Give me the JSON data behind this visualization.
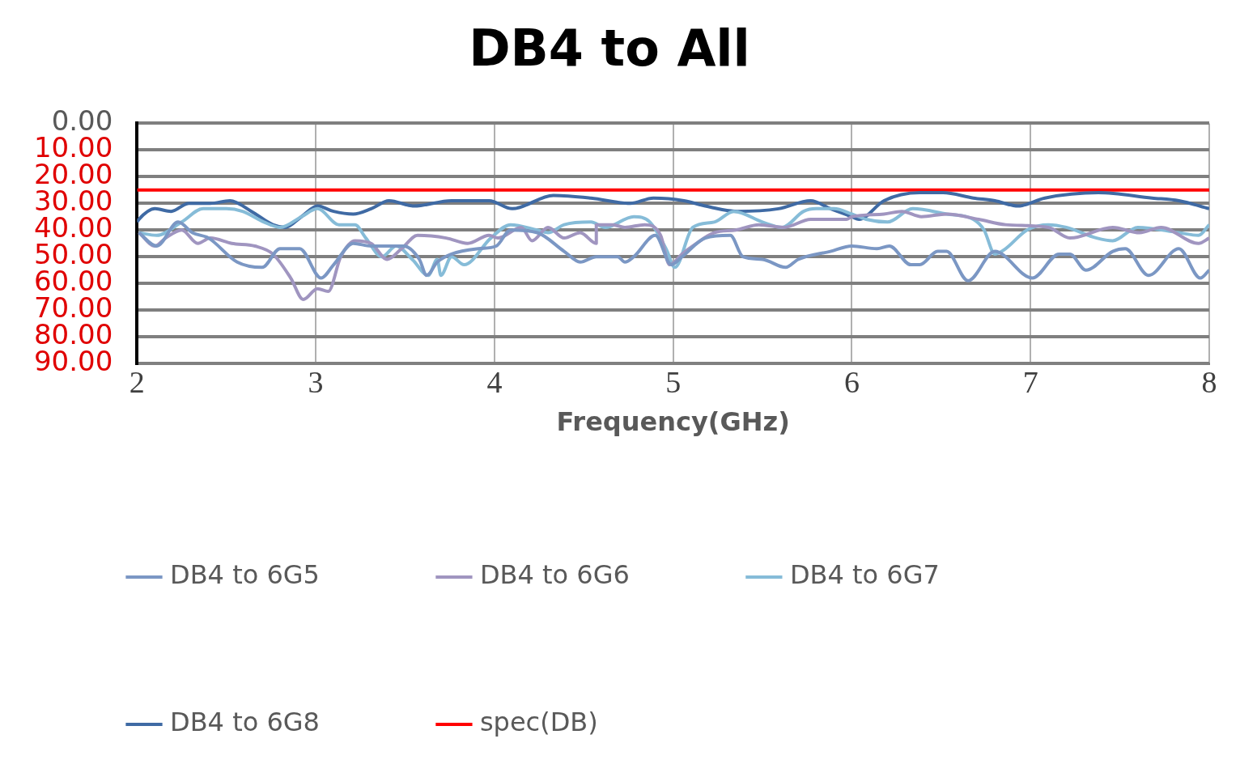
{
  "chart_data": {
    "type": "line",
    "title": "DB4 to All",
    "xlabel": "Frequency(GHz)",
    "xlim": [
      2,
      8
    ],
    "xticks": [
      2,
      3,
      4,
      5,
      6,
      7,
      8
    ],
    "ylim": [
      90,
      0
    ],
    "yticks": [
      {
        "value": 0,
        "label": "0.00"
      },
      {
        "value": 10,
        "label": "10.00"
      },
      {
        "value": 20,
        "label": "20.00"
      },
      {
        "value": 30,
        "label": "30.00"
      },
      {
        "value": 40,
        "label": "40.00"
      },
      {
        "value": 50,
        "label": "50.00"
      },
      {
        "value": 60,
        "label": "60.00"
      },
      {
        "value": 70,
        "label": "70.00"
      },
      {
        "value": 80,
        "label": "80.00"
      },
      {
        "value": 90,
        "label": "90.00"
      }
    ],
    "grid": true,
    "legend": "bottom",
    "marker": "none",
    "line_style": "solid",
    "series": [
      {
        "name": "DB4 to 6G5",
        "color": "#7b97c4",
        "x": [
          2.01,
          2.11,
          2.23,
          2.31,
          2.4,
          2.56,
          2.7,
          2.8,
          2.91,
          3.03,
          3.1,
          3.21,
          3.31,
          3.4,
          3.49,
          3.58,
          3.62,
          3.68,
          3.76,
          3.91,
          4.01,
          4.09,
          4.24,
          4.39,
          4.48,
          4.57,
          4.69,
          4.73,
          4.78,
          4.9,
          4.99,
          5.05,
          5.18,
          5.32,
          5.39,
          5.5,
          5.63,
          5.7,
          5.88,
          6,
          6.14,
          6.21,
          6.33,
          6.38,
          6.48,
          6.53,
          6.65,
          6.8,
          7.01,
          7.16,
          7.22,
          7.31,
          7.46,
          7.53,
          7.66,
          7.83,
          7.95,
          8
        ],
        "values": [
          41,
          46,
          37,
          41,
          43,
          52,
          54,
          47,
          47,
          58,
          53,
          45,
          46,
          46,
          46,
          51,
          57,
          52,
          49,
          47,
          46,
          40,
          41,
          48,
          52,
          50,
          50,
          52,
          50,
          42,
          53,
          50,
          43,
          42,
          50,
          51,
          54,
          51,
          48,
          46,
          47,
          46,
          53,
          53,
          48,
          48,
          59,
          48,
          58,
          49,
          49,
          55,
          48,
          47,
          57,
          47,
          58,
          55
        ]
      },
      {
        "name": "DB4 to 6G6",
        "color": "#a095c0",
        "x": [
          2.01,
          2.1,
          2.16,
          2.25,
          2.34,
          2.41,
          2.53,
          2.66,
          2.76,
          2.86,
          2.93,
          3.01,
          3.07,
          3.14,
          3.22,
          3.31,
          3.4,
          3.48,
          3.57,
          3.73,
          3.85,
          3.97,
          4.02,
          4.15,
          4.21,
          4.3,
          4.39,
          4.48,
          4.57,
          4.57,
          4.66,
          4.73,
          4.84,
          4.93,
          4.98,
          5.05,
          5.11,
          5.23,
          5.35,
          5.48,
          5.62,
          5.77,
          5.97,
          6,
          6.18,
          6.28,
          6.39,
          6.53,
          6.71,
          6.86,
          7.1,
          7.22,
          7.46,
          7.61,
          7.73,
          7.94,
          8
        ],
        "values": [
          41,
          46,
          43,
          40,
          45,
          43,
          45,
          46,
          49,
          58,
          66,
          62,
          63,
          50,
          44,
          45,
          51,
          47,
          42,
          43,
          45,
          42,
          43,
          39,
          44,
          39,
          43,
          41,
          45,
          38,
          38,
          39,
          38,
          42,
          53,
          49,
          46,
          41,
          40,
          38,
          39,
          36,
          36,
          35,
          34,
          33,
          35,
          34,
          36,
          38,
          39,
          43,
          39,
          41,
          39,
          45,
          43
        ]
      },
      {
        "name": "DB4 to 6G7",
        "color": "#86bcd8",
        "x": [
          2.01,
          2.11,
          2.25,
          2.37,
          2.5,
          2.59,
          2.71,
          2.8,
          2.92,
          3.01,
          3.13,
          3.22,
          3.28,
          3.37,
          3.45,
          3.54,
          3.63,
          3.68,
          3.7,
          3.76,
          3.83,
          3.98,
          4.09,
          4.24,
          4.3,
          4.39,
          4.54,
          4.62,
          4.78,
          4.87,
          4.96,
          5.01,
          5.11,
          5.23,
          5.34,
          5.5,
          5.61,
          5.73,
          5.8,
          5.9,
          6,
          6.08,
          6.2,
          6.34,
          6.53,
          6.68,
          6.74,
          6.8,
          6.86,
          6.98,
          7.1,
          7.2,
          7.37,
          7.46,
          7.6,
          7.83,
          7.94,
          8
        ],
        "values": [
          41,
          42,
          37,
          32,
          32,
          33,
          37,
          39,
          35,
          32,
          38,
          38,
          43,
          50,
          46,
          51,
          57,
          51,
          57,
          50,
          53,
          43,
          38,
          40,
          41,
          38,
          37,
          39,
          35,
          37,
          47,
          54,
          39,
          37,
          33,
          37,
          39,
          33,
          32,
          32,
          34,
          36,
          37,
          32,
          34,
          36,
          40,
          49,
          47,
          40,
          38,
          39,
          43,
          44,
          39,
          41,
          42,
          38
        ]
      },
      {
        "name": "DB4 to 6G8",
        "color": "#3f6aa4",
        "x": [
          2,
          2.01,
          2.1,
          2.19,
          2.29,
          2.41,
          2.52,
          2.64,
          2.76,
          2.83,
          2.92,
          3.01,
          3.1,
          3.21,
          3.31,
          3.41,
          3.55,
          3.76,
          3.97,
          4.1,
          4.33,
          4.54,
          4.76,
          4.89,
          5.06,
          5.18,
          5.36,
          5.59,
          5.77,
          5.88,
          6,
          6.04,
          6.18,
          6.38,
          6.51,
          6.68,
          6.8,
          6.93,
          7.08,
          7.38,
          7.68,
          7.83,
          8
        ],
        "values": [
          37,
          36,
          32,
          33,
          30,
          30,
          29,
          33,
          38,
          39,
          35,
          31,
          33,
          34,
          32,
          29,
          31,
          29,
          29,
          32,
          27,
          28,
          30,
          28,
          29,
          31,
          33,
          32,
          29,
          32,
          35,
          36,
          29,
          26,
          26,
          28,
          29,
          31,
          28,
          26,
          28,
          29,
          32
        ]
      },
      {
        "name": "spec(DB)",
        "color": "#ff0000",
        "x": [
          2,
          8
        ],
        "values": [
          25,
          25
        ]
      }
    ]
  }
}
